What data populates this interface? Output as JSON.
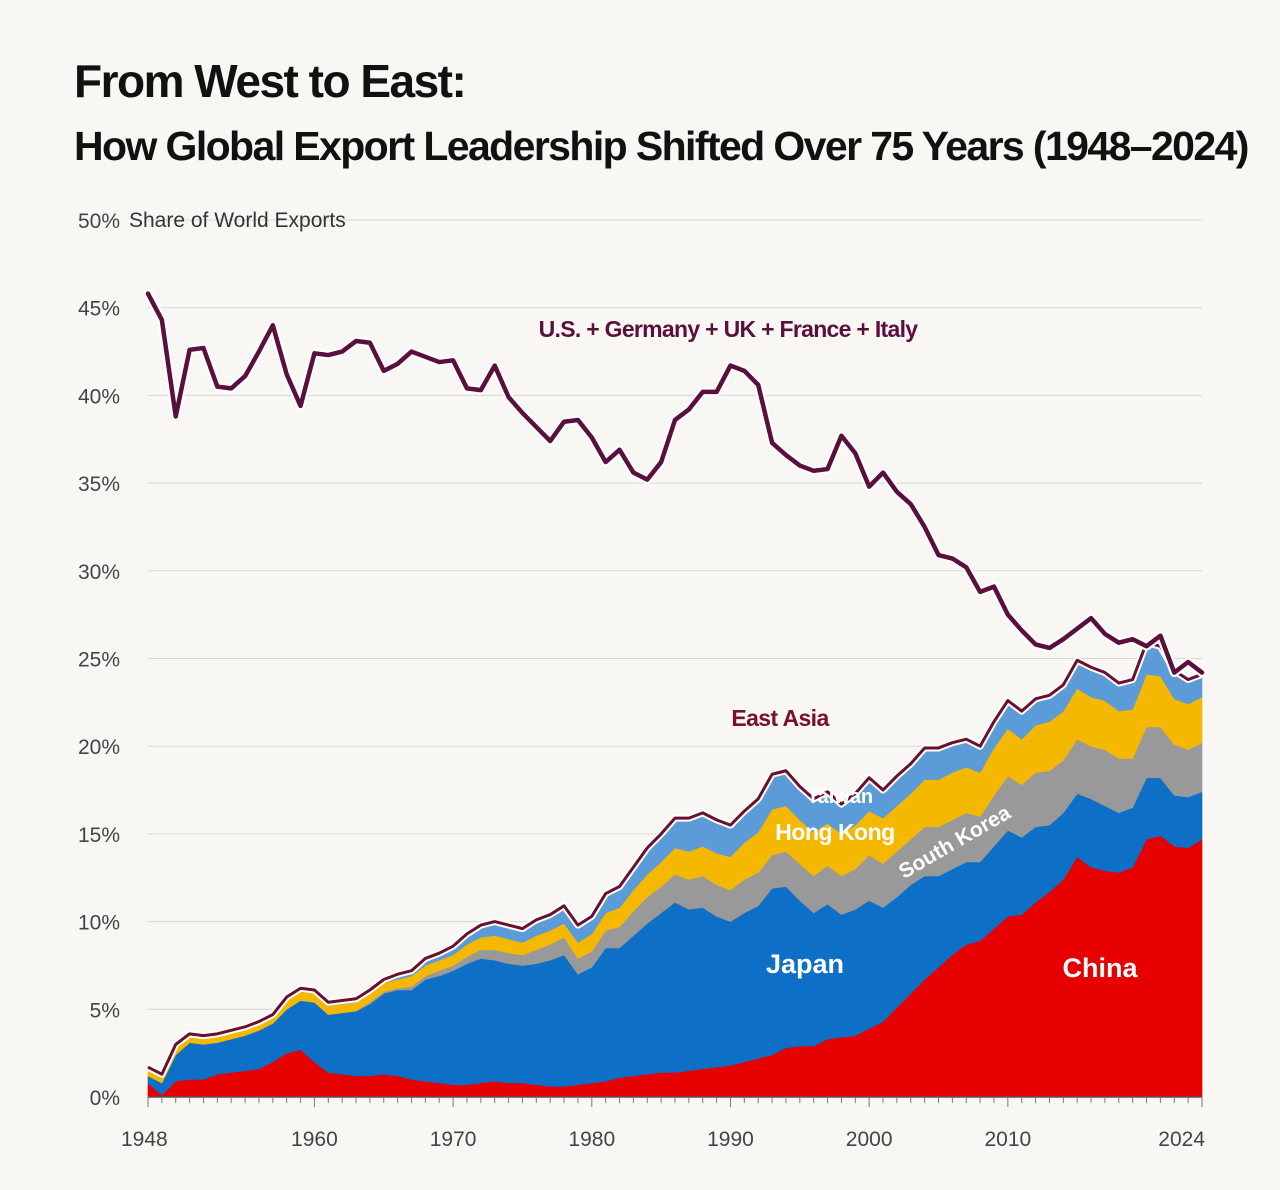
{
  "title": "From West to East:",
  "subtitle": "How Global Export Leadership Shifted Over 75 Years (1948–2024)",
  "chart_data": {
    "type": "area",
    "title": "From West to East:",
    "subtitle": "How Global Export Leadership Shifted Over 75 Years (1948–2024)",
    "ylabel": "Share of World Exports",
    "xlabel": "",
    "ylim": [
      0,
      50
    ],
    "xlim": [
      1948,
      2024
    ],
    "y_ticks": [
      0,
      5,
      10,
      15,
      20,
      25,
      30,
      35,
      40,
      45,
      50
    ],
    "y_tick_labels": [
      "0%",
      "5%",
      "10%",
      "15%",
      "20%",
      "25%",
      "30%",
      "35%",
      "40%",
      "45%",
      "50%"
    ],
    "x_ticks": [
      1948,
      1960,
      1970,
      1980,
      1990,
      2000,
      2010,
      2024
    ],
    "x_tick_labels": [
      "1948",
      "1960",
      "1970",
      "1980",
      "1990",
      "2000",
      "2010",
      "2024"
    ],
    "grid": true,
    "x": [
      1948,
      1949,
      1950,
      1951,
      1952,
      1953,
      1954,
      1955,
      1956,
      1957,
      1958,
      1959,
      1960,
      1961,
      1962,
      1963,
      1964,
      1965,
      1966,
      1967,
      1968,
      1969,
      1970,
      1971,
      1972,
      1973,
      1974,
      1975,
      1976,
      1977,
      1978,
      1979,
      1980,
      1981,
      1982,
      1983,
      1984,
      1985,
      1986,
      1987,
      1988,
      1989,
      1990,
      1991,
      1992,
      1993,
      1994,
      1995,
      1996,
      1997,
      1998,
      1999,
      2000,
      2001,
      2002,
      2003,
      2004,
      2005,
      2006,
      2007,
      2008,
      2009,
      2010,
      2011,
      2012,
      2013,
      2014,
      2015,
      2016,
      2017,
      2018,
      2019,
      2020,
      2021,
      2022,
      2023,
      2024
    ],
    "stacked_series": [
      {
        "name": "China",
        "color": "#e60000",
        "values": [
          0.8,
          0.1,
          0.9,
          1.0,
          1.0,
          1.3,
          1.4,
          1.5,
          1.6,
          2.0,
          2.5,
          2.7,
          2.0,
          1.4,
          1.3,
          1.2,
          1.2,
          1.3,
          1.2,
          1.0,
          0.9,
          0.8,
          0.7,
          0.7,
          0.8,
          0.9,
          0.8,
          0.8,
          0.7,
          0.6,
          0.6,
          0.7,
          0.8,
          0.9,
          1.1,
          1.2,
          1.3,
          1.4,
          1.4,
          1.5,
          1.6,
          1.7,
          1.8,
          2.0,
          2.2,
          2.4,
          2.8,
          2.9,
          2.9,
          3.3,
          3.4,
          3.5,
          3.9,
          4.3,
          5.1,
          5.9,
          6.7,
          7.4,
          8.1,
          8.7,
          8.9,
          9.6,
          10.3,
          10.4,
          11.1,
          11.7,
          12.4,
          13.7,
          13.1,
          12.9,
          12.8,
          13.1,
          14.7,
          14.9,
          14.3,
          14.2,
          14.7
        ]
      },
      {
        "name": "Japan",
        "color": "#0e6fc6",
        "values": [
          0.4,
          0.7,
          1.5,
          2.1,
          2.0,
          1.8,
          1.9,
          2.0,
          2.2,
          2.2,
          2.5,
          2.8,
          3.4,
          3.3,
          3.5,
          3.7,
          4.1,
          4.6,
          4.9,
          5.1,
          5.8,
          6.1,
          6.5,
          6.9,
          7.1,
          6.9,
          6.8,
          6.7,
          6.9,
          7.2,
          7.5,
          6.3,
          6.6,
          7.6,
          7.4,
          8.0,
          8.6,
          9.1,
          9.7,
          9.2,
          9.2,
          8.6,
          8.2,
          8.5,
          8.7,
          9.5,
          9.2,
          8.3,
          7.6,
          7.7,
          7.0,
          7.2,
          7.3,
          6.5,
          6.3,
          6.2,
          5.9,
          5.2,
          4.9,
          4.7,
          4.5,
          4.7,
          4.9,
          4.4,
          4.3,
          3.8,
          3.8,
          3.6,
          3.9,
          3.7,
          3.4,
          3.4,
          3.5,
          3.3,
          2.9,
          2.9,
          2.7
        ]
      },
      {
        "name": "South Korea",
        "color": "#999999",
        "values": [
          0,
          0,
          0,
          0,
          0,
          0,
          0,
          0,
          0,
          0,
          0,
          0,
          0,
          0,
          0,
          0,
          0.1,
          0.1,
          0.1,
          0.2,
          0.2,
          0.3,
          0.3,
          0.4,
          0.5,
          0.6,
          0.6,
          0.6,
          0.8,
          0.9,
          1.0,
          0.9,
          0.9,
          1.0,
          1.2,
          1.4,
          1.5,
          1.5,
          1.6,
          1.7,
          1.8,
          1.8,
          1.8,
          1.9,
          1.9,
          1.9,
          2.0,
          2.1,
          2.1,
          2.2,
          2.2,
          2.3,
          2.6,
          2.5,
          2.6,
          2.6,
          2.8,
          2.8,
          2.8,
          2.8,
          2.6,
          2.9,
          3.1,
          3.0,
          3.1,
          3.1,
          3.0,
          3.1,
          3.0,
          3.2,
          3.1,
          2.8,
          2.9,
          2.9,
          2.9,
          2.7,
          2.8
        ]
      },
      {
        "name": "Hong Kong",
        "color": "#f5b800",
        "values": [
          0.3,
          0.3,
          0.4,
          0.4,
          0.4,
          0.4,
          0.4,
          0.4,
          0.4,
          0.4,
          0.5,
          0.5,
          0.5,
          0.5,
          0.5,
          0.5,
          0.5,
          0.5,
          0.5,
          0.6,
          0.6,
          0.6,
          0.6,
          0.7,
          0.7,
          0.8,
          0.8,
          0.7,
          0.8,
          0.8,
          0.8,
          0.9,
          1.0,
          1.0,
          1.1,
          1.2,
          1.3,
          1.4,
          1.5,
          1.6,
          1.7,
          1.8,
          1.9,
          2.1,
          2.3,
          2.6,
          2.6,
          2.5,
          2.5,
          2.4,
          2.4,
          2.5,
          2.5,
          2.6,
          2.6,
          2.6,
          2.7,
          2.7,
          2.7,
          2.6,
          2.5,
          2.7,
          2.7,
          2.6,
          2.7,
          2.8,
          2.8,
          2.9,
          2.8,
          2.8,
          2.7,
          2.8,
          3.0,
          2.9,
          2.6,
          2.6,
          2.6
        ]
      },
      {
        "name": "Taiwan",
        "color": "#5b9bd8",
        "values": [
          0.2,
          0.2,
          0.2,
          0.1,
          0.1,
          0.1,
          0.1,
          0.1,
          0.1,
          0.1,
          0.2,
          0.2,
          0.2,
          0.2,
          0.2,
          0.2,
          0.2,
          0.2,
          0.3,
          0.3,
          0.4,
          0.4,
          0.5,
          0.6,
          0.7,
          0.8,
          0.8,
          0.8,
          0.9,
          0.9,
          1.0,
          1.0,
          1.0,
          1.1,
          1.2,
          1.3,
          1.5,
          1.6,
          1.7,
          1.9,
          1.9,
          1.9,
          1.8,
          1.8,
          1.9,
          2.0,
          2.0,
          1.9,
          1.9,
          1.8,
          1.7,
          1.8,
          1.9,
          1.6,
          1.7,
          1.7,
          1.8,
          1.8,
          1.7,
          1.6,
          1.5,
          1.5,
          1.6,
          1.6,
          1.5,
          1.5,
          1.5,
          1.6,
          1.7,
          1.6,
          1.6,
          1.7,
          1.8,
          1.7,
          1.6,
          1.4,
          1.3
        ]
      }
    ],
    "line_series": [
      {
        "name": "U.S. + Germany + UK + France + Italy",
        "color": "#5a0f3c",
        "values": [
          45.8,
          44.3,
          38.8,
          42.6,
          42.7,
          40.5,
          40.4,
          41.1,
          42.5,
          44.0,
          41.2,
          39.4,
          42.4,
          42.3,
          42.5,
          43.1,
          43.0,
          41.4,
          41.8,
          42.5,
          42.2,
          41.9,
          42.0,
          40.4,
          40.3,
          41.7,
          39.9,
          39.0,
          38.2,
          37.4,
          38.5,
          38.6,
          37.6,
          36.2,
          36.9,
          35.6,
          35.2,
          36.2,
          38.6,
          39.2,
          40.2,
          40.2,
          41.7,
          41.4,
          40.6,
          37.3,
          36.6,
          36.0,
          35.7,
          35.8,
          37.7,
          36.7,
          34.8,
          35.6,
          34.5,
          33.8,
          32.5,
          30.9,
          30.7,
          30.2,
          28.8,
          29.1,
          27.5,
          26.6,
          25.8,
          25.6,
          26.1,
          26.7,
          27.3,
          26.4,
          25.9,
          26.1,
          25.7,
          26.3,
          24.2,
          24.8,
          24.2
        ]
      },
      {
        "name": "East Asia",
        "color": "#6b0f2e",
        "role": "total of stacked series"
      }
    ],
    "annotations": [
      {
        "text": "U.S. + Germany + UK + France + Italy",
        "color": "#5a0f3c"
      },
      {
        "text": "East Asia",
        "color": "#7a0f2a"
      },
      {
        "text": "Taiwan",
        "color": "#ffffff"
      },
      {
        "text": "Hong Kong",
        "color": "#ffffff"
      },
      {
        "text": "South Korea",
        "color": "#ffffff"
      },
      {
        "text": "Japan",
        "color": "#ffffff"
      },
      {
        "text": "China",
        "color": "#ffffff"
      }
    ],
    "legend": "none (direct labels)"
  }
}
